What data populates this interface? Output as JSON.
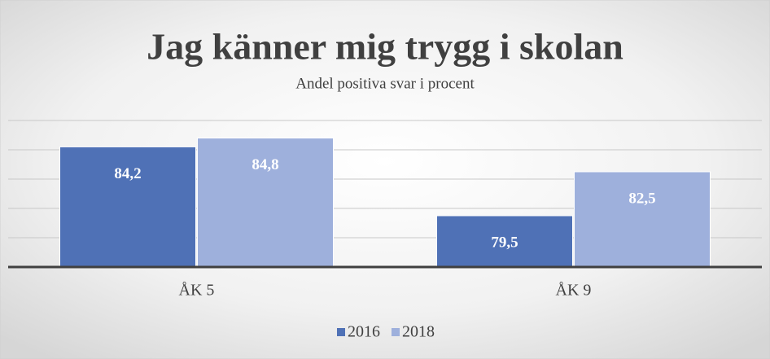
{
  "chart_data": {
    "type": "bar",
    "title": "Jag känner mig trygg i skolan",
    "subtitle": "Andel positiva svar i procent",
    "categories": [
      "ÅK 5",
      "ÅK 9"
    ],
    "series": [
      {
        "name": "2016",
        "color": "#4f71b6",
        "values": [
          84.2,
          79.5
        ],
        "value_labels": [
          "84,2",
          "79,5"
        ]
      },
      {
        "name": "2018",
        "color": "#9eb0dc",
        "values": [
          84.8,
          82.5
        ],
        "value_labels": [
          "84,8",
          "82,5"
        ]
      }
    ],
    "ylim": [
      76,
      86
    ],
    "yticks": [
      76,
      78,
      80,
      82,
      84,
      86
    ],
    "grid": true,
    "legend": "bottom"
  }
}
